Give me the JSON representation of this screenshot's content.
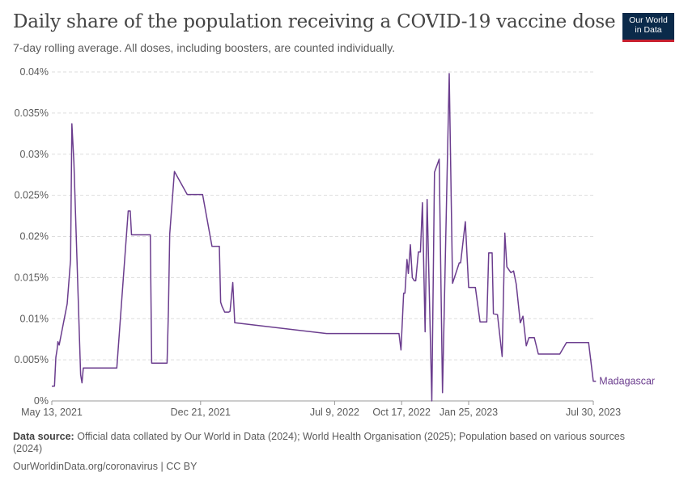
{
  "title": "Daily share of the population receiving a COVID-19 vaccine dose",
  "subtitle": "7-day rolling average. All doses, including boosters, are counted individually.",
  "logo": {
    "line1": "Our World",
    "line2": "in Data"
  },
  "footer": {
    "source_label": "Data source:",
    "source_text": "Official data collated by Our World in Data (2024); World Health Organisation (2025); Population based on various sources (2024)",
    "license": "OurWorldinData.org/coronavirus | CC BY"
  },
  "colors": {
    "series": "#6b3d8e",
    "text": "#444444",
    "grid": "#dddddd"
  },
  "chart_data": {
    "type": "line",
    "xlabel": "",
    "ylabel": "",
    "ylim": [
      0,
      0.04
    ],
    "y_ticks": [
      "0%",
      "0.005%",
      "0.01%",
      "0.015%",
      "0.02%",
      "0.025%",
      "0.03%",
      "0.035%",
      "0.04%"
    ],
    "x_ticks": [
      {
        "date": "2021-05-13",
        "label": "May 13, 2021"
      },
      {
        "date": "2021-12-21",
        "label": "Dec 21, 2021"
      },
      {
        "date": "2022-07-09",
        "label": "Jul 9, 2022"
      },
      {
        "date": "2022-10-17",
        "label": "Oct 17, 2022"
      },
      {
        "date": "2023-01-25",
        "label": "Jan 25, 2023"
      },
      {
        "date": "2023-07-30",
        "label": "Jul 30, 2023"
      }
    ],
    "grid": true,
    "series": [
      {
        "name": "Madagascar",
        "x": [
          "2021-05-13",
          "2021-05-17",
          "2021-05-19",
          "2021-05-21",
          "2021-05-22",
          "2021-05-24",
          "2021-06-05",
          "2021-06-10",
          "2021-06-12",
          "2021-06-15",
          "2021-06-25",
          "2021-06-27",
          "2021-06-29",
          "2021-07-01",
          "2021-07-03",
          "2021-07-05",
          "2021-08-18",
          "2021-09-04",
          "2021-09-07",
          "2021-09-09",
          "2021-09-11",
          "2021-09-25",
          "2021-10-07",
          "2021-10-09",
          "2021-10-11",
          "2021-10-28",
          "2021-11-01",
          "2021-11-03",
          "2021-11-05",
          "2021-11-12",
          "2021-12-01",
          "2021-12-21",
          "2021-12-24",
          "2022-01-07",
          "2022-01-09",
          "2022-01-11",
          "2022-01-14",
          "2022-01-18",
          "2022-01-20",
          "2022-01-22",
          "2022-01-26",
          "2022-02-01",
          "2022-02-03",
          "2022-02-07",
          "2022-02-10",
          "2022-06-27",
          "2022-07-04",
          "2022-07-09",
          "2022-07-12",
          "2022-07-16",
          "2022-07-19",
          "2022-07-23",
          "2022-07-27",
          "2022-07-30",
          "2022-08-03",
          "2022-08-06",
          "2022-08-12",
          "2022-08-16",
          "2022-08-19",
          "2022-08-23",
          "2022-08-28",
          "2022-09-03",
          "2022-09-07",
          "2022-09-10",
          "2022-09-14",
          "2022-09-17",
          "2022-09-23",
          "2022-09-27",
          "2022-09-29",
          "2022-10-03",
          "2022-10-07",
          "2022-10-13",
          "2022-10-16",
          "2022-10-20",
          "2022-10-22",
          "2022-10-25",
          "2022-10-27",
          "2022-10-30",
          "2022-11-02",
          "2022-11-05",
          "2022-11-07",
          "2022-11-11",
          "2022-11-14",
          "2022-11-17",
          "2022-11-21",
          "2022-11-24",
          "2022-12-01",
          "2022-12-05",
          "2022-12-12",
          "2022-12-17",
          "2022-12-27",
          "2023-01-01",
          "2023-01-11",
          "2023-01-13",
          "2023-01-20",
          "2023-01-25",
          "2023-02-01",
          "2023-02-04",
          "2023-02-11",
          "2023-02-14",
          "2023-02-21",
          "2023-02-24",
          "2023-03-01",
          "2023-03-03",
          "2023-03-09",
          "2023-03-16",
          "2023-03-20",
          "2023-03-23",
          "2023-03-29",
          "2023-04-02",
          "2023-04-06",
          "2023-04-12",
          "2023-04-16",
          "2023-04-21",
          "2023-04-25",
          "2023-05-03",
          "2023-05-09",
          "2023-05-21",
          "2023-05-31",
          "2023-06-10",
          "2023-06-20",
          "2023-07-10",
          "2023-07-15",
          "2023-07-23",
          "2023-07-30",
          "2023-08-03"
        ],
        "values": [
          0.0018,
          0.0018,
          0.0053,
          0.0063,
          0.0072,
          0.0068,
          0.0118,
          0.0172,
          0.0337,
          0.029,
          0.0032,
          0.0022,
          0.004,
          0.004,
          0.004,
          0.004,
          0.004,
          0.0231,
          0.0231,
          0.0202,
          0.0202,
          0.0202,
          0.0202,
          0.0046,
          0.0046,
          0.0046,
          0.0046,
          0.0111,
          0.0203,
          0.0279,
          0.0251,
          0.0251,
          0.0251,
          0.0188,
          0.0188,
          0.0188,
          0.0188,
          0.0188,
          0.012,
          0.0115,
          0.0108,
          0.0108,
          0.0109,
          0.0144,
          0.0095,
          0.0082,
          0.0082,
          0.0082,
          0.0082,
          0.0082,
          0.0082,
          0.0082,
          0.0082,
          0.0082,
          0.0082,
          0.0082,
          0.0082,
          0.0082,
          0.0082,
          0.0082,
          0.0082,
          0.0082,
          0.0082,
          0.0082,
          0.0082,
          0.0082,
          0.0082,
          0.0082,
          0.0082,
          0.0082,
          0.0082,
          0.0082,
          0.0062,
          0.0131,
          0.0131,
          0.0172,
          0.0155,
          0.019,
          0.015,
          0.0146,
          0.0146,
          0.0181,
          0.0181,
          0.0241,
          0.0084,
          0.0245,
          0.0,
          0.0278,
          0.0294,
          0.001,
          0.0398,
          0.0143,
          0.0168,
          0.0168,
          0.0218,
          0.0138,
          0.0138,
          0.0138,
          0.0096,
          0.0096,
          0.0096,
          0.018,
          0.018,
          0.0106,
          0.0105,
          0.0054,
          0.0204,
          0.0163,
          0.0156,
          0.0158,
          0.0142,
          0.0095,
          0.0103,
          0.0067,
          0.0077,
          0.0077,
          0.0057,
          0.0057,
          0.0057,
          0.0057,
          0.0071,
          0.0071,
          0.0071,
          0.0071,
          0.0024,
          0.0024
        ]
      }
    ]
  }
}
